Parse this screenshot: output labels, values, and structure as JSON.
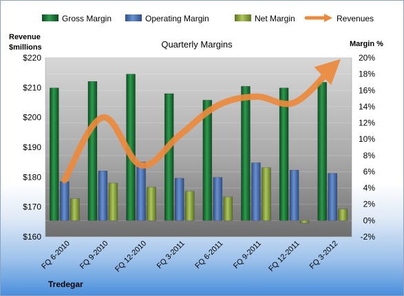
{
  "chart_data": {
    "type": "bar",
    "title": "Quarterly Margins",
    "company": "Tredegar",
    "left_axis": {
      "label_line1": "Revenue",
      "label_line2": "$millions",
      "range": [
        160,
        220
      ],
      "step": 10,
      "ticks": [
        "$160",
        "$170",
        "$180",
        "$190",
        "$200",
        "$210",
        "$220"
      ]
    },
    "right_axis": {
      "label": "Margin %",
      "range": [
        -2,
        20
      ],
      "step": 2,
      "ticks": [
        "-2%",
        "0%",
        "2%",
        "4%",
        "6%",
        "8%",
        "10%",
        "12%",
        "14%",
        "16%",
        "18%",
        "20%"
      ]
    },
    "categories": [
      "FQ 6-2010",
      "FQ 9-2010",
      "FQ 12-2010",
      "FQ 3-2011",
      "FQ 6-2011",
      "FQ 9-2011",
      "FQ 12-2011",
      "FQ 3-2012"
    ],
    "series": [
      {
        "name": "Gross Margin",
        "kind": "bar",
        "axis": "right",
        "color": "#1e7a3a",
        "values": [
          16.3,
          17.1,
          18.0,
          15.6,
          14.8,
          16.5,
          16.3,
          17.0
        ]
      },
      {
        "name": "Operating Margin",
        "kind": "bar",
        "axis": "right",
        "color": "#4a73b3",
        "values": [
          4.8,
          6.1,
          7.2,
          5.2,
          5.3,
          7.1,
          6.2,
          5.8
        ]
      },
      {
        "name": "Net Margin",
        "kind": "bar",
        "axis": "right",
        "color": "#8da83c",
        "values": [
          2.7,
          4.6,
          4.1,
          3.6,
          2.9,
          6.5,
          -0.3,
          1.4
        ]
      },
      {
        "name": "Revenues",
        "kind": "line",
        "axis": "left",
        "color": "#ec8a3c",
        "values": [
          179,
          200,
          184,
          194,
          204,
          207,
          205,
          217
        ]
      }
    ],
    "legend_position": "top",
    "grid": true
  }
}
